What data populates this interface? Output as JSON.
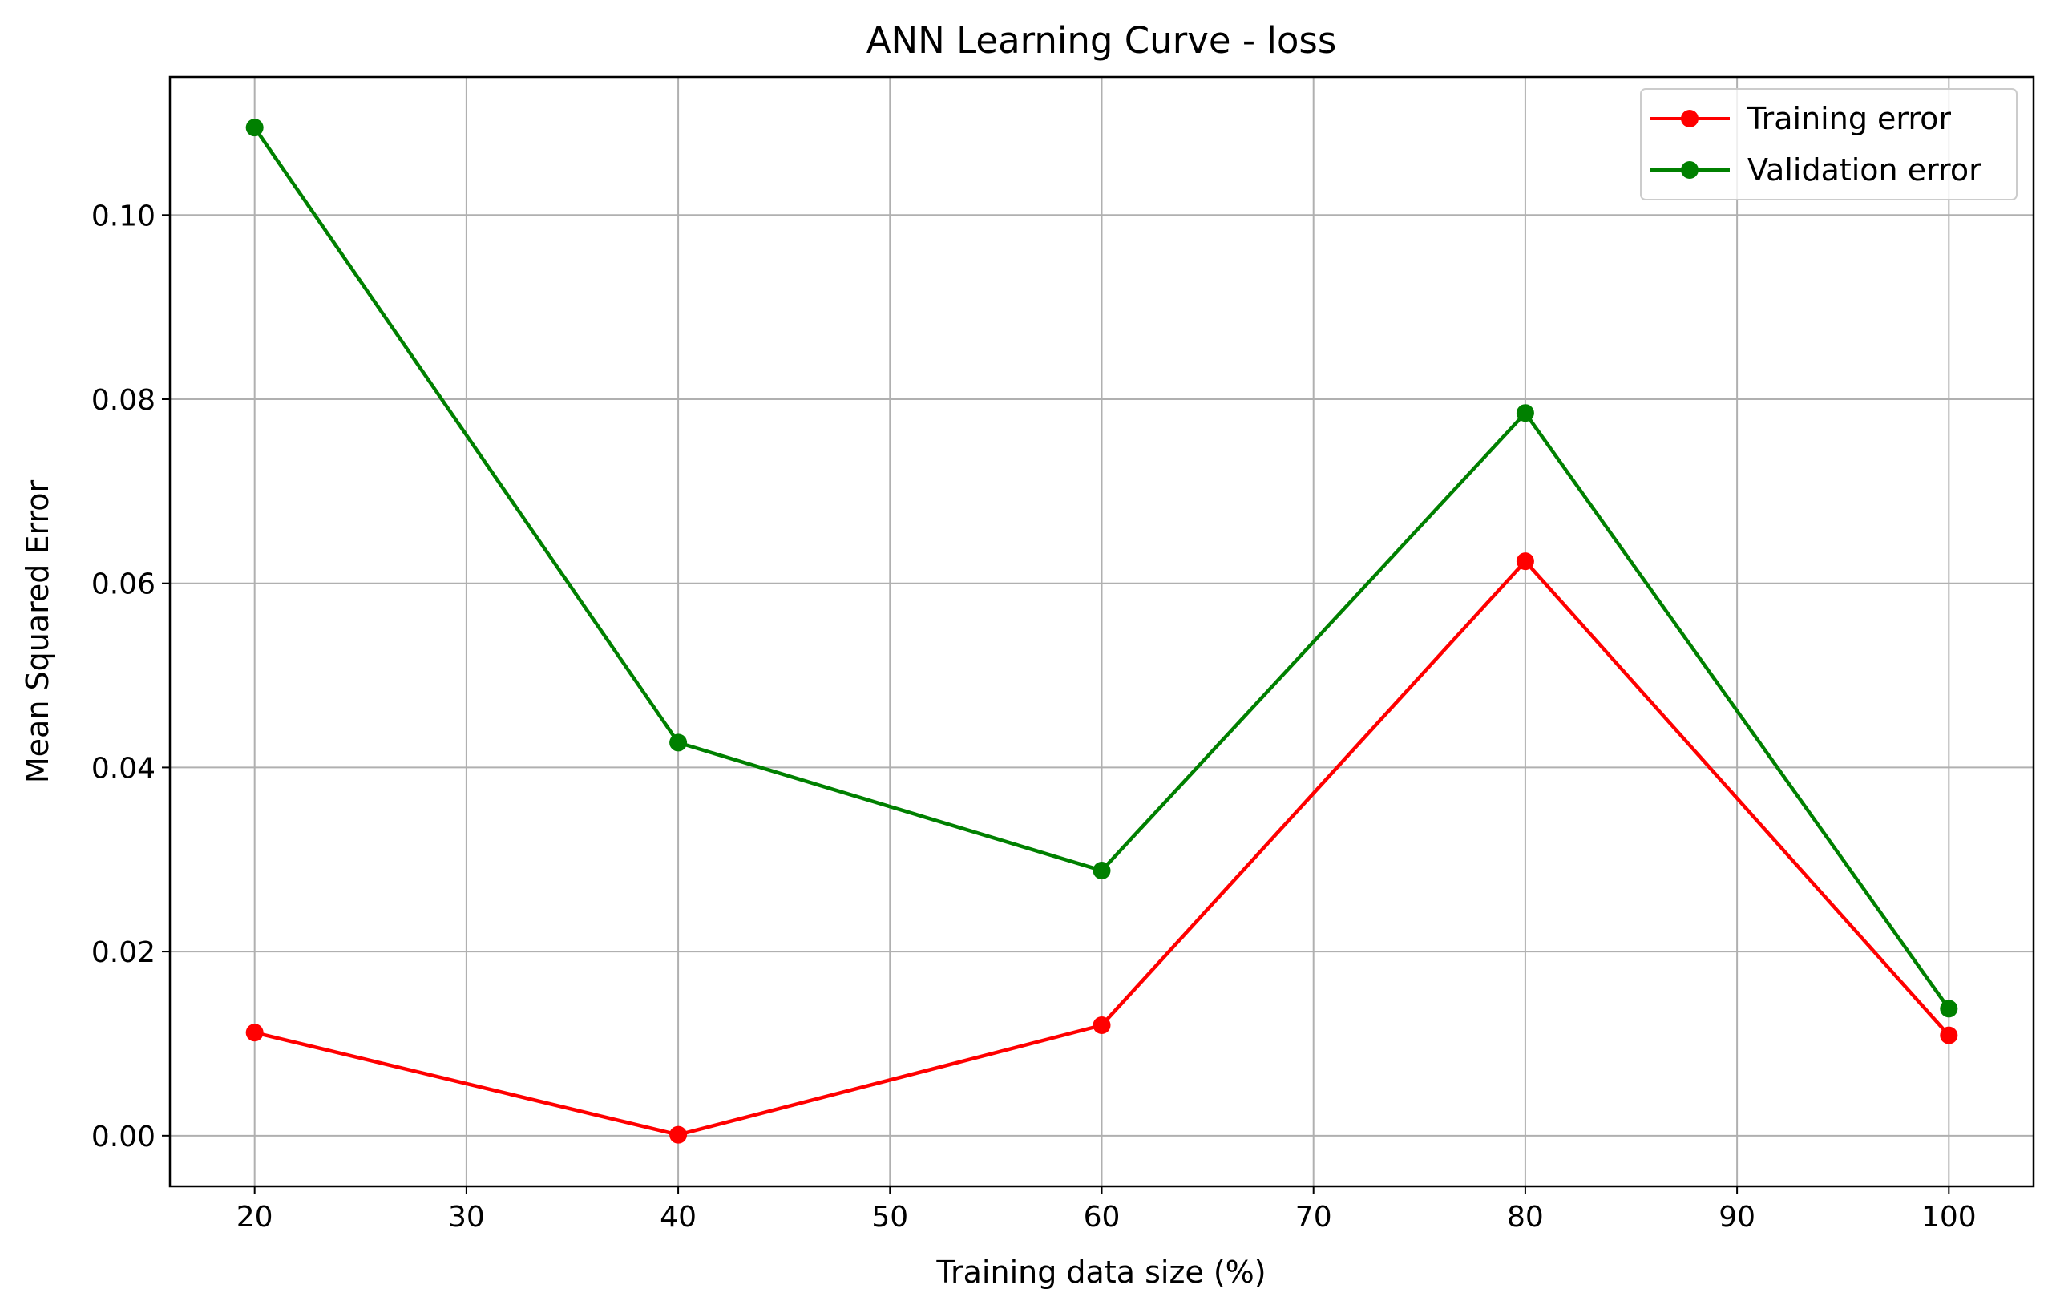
{
  "chart_data": {
    "type": "line",
    "title": "ANN Learning Curve - loss",
    "xlabel": "Training data size (%)",
    "ylabel": "Mean Squared Error",
    "x": [
      20,
      40,
      60,
      80,
      100
    ],
    "xlim": [
      16,
      104
    ],
    "ylim": [
      -0.0055,
      0.115
    ],
    "xticks": [
      20,
      30,
      40,
      50,
      60,
      70,
      80,
      90,
      100
    ],
    "xtick_labels": [
      "20",
      "30",
      "40",
      "50",
      "60",
      "70",
      "80",
      "90",
      "100"
    ],
    "yticks": [
      0.0,
      0.02,
      0.04,
      0.06,
      0.08,
      0.1
    ],
    "ytick_labels": [
      "0.00",
      "0.02",
      "0.04",
      "0.06",
      "0.08",
      "0.10"
    ],
    "grid": true,
    "legend_position": "top-right",
    "series": [
      {
        "name": "Training error",
        "color": "#ff0000",
        "marker": "circle",
        "values": [
          0.0112,
          0.0001,
          0.012,
          0.0624,
          0.0109
        ]
      },
      {
        "name": "Validation error",
        "color": "#008000",
        "marker": "circle",
        "values": [
          0.1095,
          0.0427,
          0.0288,
          0.0785,
          0.0138
        ]
      }
    ]
  }
}
